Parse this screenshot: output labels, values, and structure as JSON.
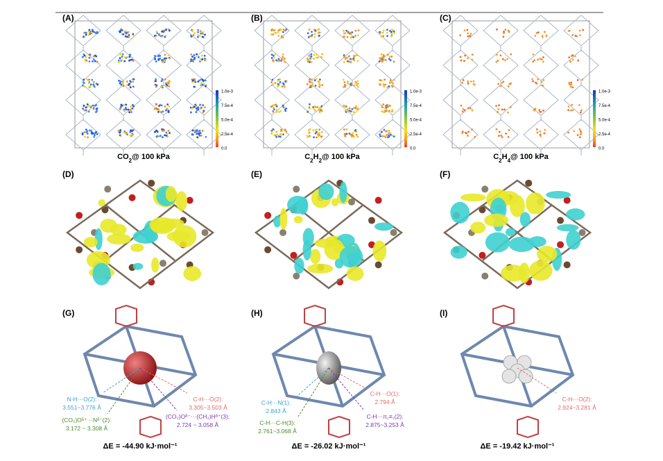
{
  "panels": [
    {
      "label": "(A)",
      "caption": [
        {
          "text": "CO"
        },
        {
          "text": "2",
          "sub": true
        },
        {
          "text": "@ 100 kPa"
        }
      ],
      "colorbar": [
        "1.0e-3",
        "7.5e-4",
        "5.0e-4",
        "2.5e-4",
        "0.0"
      ],
      "dot_colors": [
        "#1f4fd8",
        "#2f6ff0",
        "#3b8ff5",
        "#f2d21a",
        "#f08a24"
      ]
    },
    {
      "label": "(B)",
      "caption": [
        {
          "text": "C"
        },
        {
          "text": "2",
          "sub": true
        },
        {
          "text": "H"
        },
        {
          "text": "2",
          "sub": true
        },
        {
          "text": "@ 100 kPa"
        }
      ],
      "colorbar": [
        "1.0e-3",
        "7.5e-4",
        "5.0e-4",
        "2.5e-4",
        "0.0"
      ],
      "dot_colors": [
        "#f2d21a",
        "#f5b52a",
        "#f08a24",
        "#2f6ff0"
      ]
    },
    {
      "label": "(C)",
      "caption": [
        {
          "text": "C"
        },
        {
          "text": "2",
          "sub": true
        },
        {
          "text": "H"
        },
        {
          "text": "4",
          "sub": true
        },
        {
          "text": "@ 100 kPa"
        }
      ],
      "colorbar": [
        "1.0e-3",
        "7.5e-4",
        "5.0e-4",
        "2.5e-4",
        "0.0"
      ],
      "dot_colors": [
        "#f08a24",
        "#ee6a2a",
        "#f5a23a"
      ]
    },
    {
      "label": "(D)"
    },
    {
      "label": "(E)"
    },
    {
      "label": "(F)"
    },
    {
      "label": "(G)",
      "energy": "ΔE = -44.90 kJ·mol⁻¹",
      "guest_color": "#c8221e",
      "annotations": [
        {
          "lines": [
            "N-H···O(2):",
            "3.551~3.776 Å"
          ],
          "color": "#3aa3cc"
        },
        {
          "lines": [
            "C-H···O(2):",
            "3.305~3.503 Å"
          ],
          "color": "#e06a6a"
        },
        {
          "lines": [
            "(CO₂)Oᵟ⁺···Nᵟ⁻(2):",
            "3.172 ~ 3.308 Å"
          ],
          "color": "#4a8a2a"
        },
        {
          "lines": [
            "(CO₂)Oᵟ⁻···(CH₂)Hᵟ⁺(3):",
            "2.724 ~ 3.058 Å"
          ],
          "color": "#7a3ab0"
        }
      ]
    },
    {
      "label": "(H)",
      "energy": "ΔE = -26.02 kJ·mol⁻¹",
      "guest_color": "#8a8a8a",
      "annotations": [
        {
          "lines": [
            "C-H···N(1):",
            "2.843 Å"
          ],
          "color": "#3aa3cc"
        },
        {
          "lines": [
            "C-H···O(1):",
            "2.794 Å"
          ],
          "color": "#e06a6a"
        },
        {
          "lines": [
            "C-H···C-H(3):",
            "2.761~3.068 Å"
          ],
          "color": "#4a8a2a"
        },
        {
          "lines": [
            "C-H···π꜀≡꜀(2):",
            "2.875~3.253 Å"
          ],
          "color": "#7a3ab0"
        }
      ]
    },
    {
      "label": "(I)",
      "energy": "ΔE = -19.42 kJ·mol⁻¹",
      "guest_color": "#d8d8d8",
      "annotations": [
        {
          "lines": [
            "C-H···O(2):",
            "2.924~3.281 Å"
          ],
          "color": "#e06a6a"
        }
      ]
    }
  ]
}
